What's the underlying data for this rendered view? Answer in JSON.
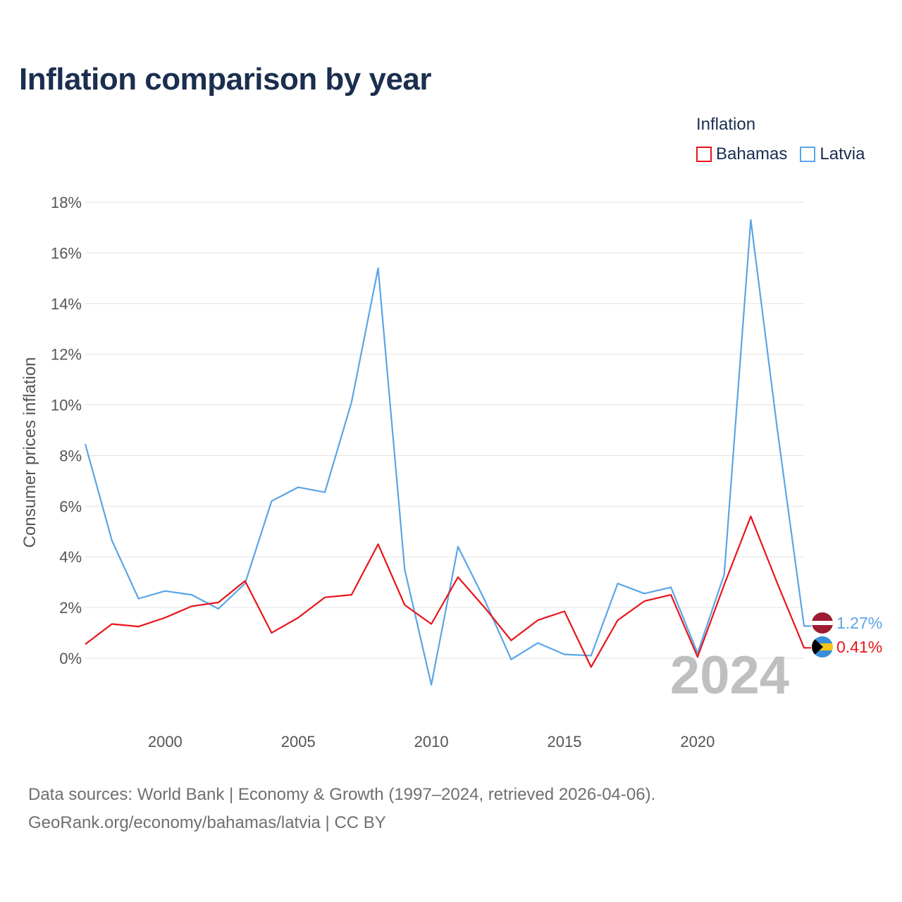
{
  "title": "Inflation comparison by year",
  "legend": {
    "title": "Inflation",
    "items": [
      {
        "label": "Bahamas",
        "color": "#e8141a"
      },
      {
        "label": "Latvia",
        "color": "#5aa5e6"
      }
    ]
  },
  "footer": {
    "line1": "Data sources: World Bank | Economy & Growth (1997–2024, retrieved 2026-04-06).",
    "line2": "GeoRank.org/economy/bahamas/latvia | CC BY"
  },
  "chart_data": {
    "type": "line",
    "title": "Inflation comparison by year",
    "xlabel": "",
    "ylabel": "Consumer prices inflation",
    "x": [
      1997,
      1998,
      1999,
      2000,
      2001,
      2002,
      2003,
      2004,
      2005,
      2006,
      2007,
      2008,
      2009,
      2010,
      2011,
      2012,
      2013,
      2014,
      2015,
      2016,
      2017,
      2018,
      2019,
      2020,
      2021,
      2022,
      2023,
      2024
    ],
    "xlim": [
      1997,
      2024
    ],
    "ylim": [
      -2.2,
      18
    ],
    "x_ticks": [
      2000,
      2005,
      2010,
      2015,
      2020
    ],
    "x_tick_labels": [
      "2000",
      "2005",
      "2010",
      "2015",
      "2020"
    ],
    "y_ticks": [
      0,
      2,
      4,
      6,
      8,
      10,
      12,
      14,
      16,
      18
    ],
    "y_tick_labels": [
      "0%",
      "2%",
      "4%",
      "6%",
      "8%",
      "10%",
      "12%",
      "14%",
      "16%",
      "18%"
    ],
    "grid": true,
    "legend_position": "top-right",
    "watermark": "2024",
    "series": [
      {
        "name": "Bahamas",
        "color": "#e8141a",
        "values": [
          0.55,
          1.35,
          1.25,
          1.6,
          2.05,
          2.2,
          3.05,
          1.0,
          1.6,
          2.4,
          2.5,
          4.5,
          2.1,
          1.35,
          3.2,
          2.0,
          0.7,
          1.5,
          1.85,
          -0.35,
          1.5,
          2.25,
          2.5,
          0.05,
          2.9,
          5.6,
          2.95,
          0.41
        ],
        "end_label": "0.41%"
      },
      {
        "name": "Latvia",
        "color": "#5aa5e6",
        "values": [
          8.45,
          4.65,
          2.35,
          2.65,
          2.5,
          1.95,
          2.95,
          6.2,
          6.75,
          6.55,
          10.1,
          15.4,
          3.5,
          -1.05,
          4.4,
          2.3,
          -0.05,
          0.6,
          0.15,
          0.1,
          2.95,
          2.55,
          2.8,
          0.2,
          3.3,
          17.3,
          9.0,
          1.27
        ],
        "end_label": "1.27%"
      }
    ]
  }
}
